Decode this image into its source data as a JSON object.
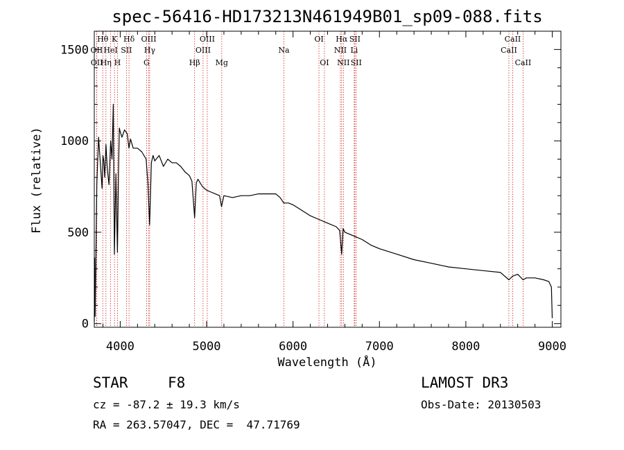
{
  "chart_data": {
    "type": "line",
    "title": "spec-56416-HD173213N461949B01_sp09-088.fits",
    "xlabel": "Wavelength (Å)",
    "ylabel": "Flux (relative)",
    "xlim": [
      3700,
      9100
    ],
    "ylim": [
      -20,
      1600
    ],
    "xticks": [
      4000,
      5000,
      6000,
      7000,
      8000,
      9000
    ],
    "yticks": [
      0,
      500,
      1000,
      1500
    ],
    "series": [
      {
        "name": "spectrum",
        "x": [
          3700,
          3705,
          3710,
          3730,
          3750,
          3770,
          3790,
          3800,
          3810,
          3820,
          3835,
          3850,
          3870,
          3889,
          3905,
          3920,
          3933,
          3950,
          3968,
          3980,
          3990,
          4000,
          4020,
          4050,
          4080,
          4101,
          4120,
          4150,
          4200,
          4250,
          4300,
          4320,
          4340,
          4360,
          4380,
          4400,
          4450,
          4500,
          4550,
          4600,
          4650,
          4700,
          4750,
          4800,
          4830,
          4861,
          4880,
          4900,
          4950,
          5000,
          5050,
          5100,
          5150,
          5172,
          5200,
          5300,
          5400,
          5500,
          5600,
          5700,
          5800,
          5850,
          5893,
          5950,
          6000,
          6100,
          6200,
          6300,
          6400,
          6500,
          6540,
          6563,
          6580,
          6600,
          6700,
          6800,
          6900,
          7000,
          7200,
          7400,
          7600,
          7800,
          8000,
          8200,
          8400,
          8498,
          8542,
          8600,
          8662,
          8700,
          8800,
          8900,
          8960,
          8990,
          9000
        ],
        "y": [
          10,
          360,
          40,
          770,
          1020,
          880,
          740,
          920,
          890,
          800,
          980,
          850,
          760,
          1000,
          900,
          1200,
          380,
          820,
          390,
          830,
          1070,
          1050,
          1020,
          1060,
          1040,
          960,
          1010,
          960,
          960,
          940,
          900,
          770,
          540,
          880,
          920,
          890,
          920,
          860,
          900,
          880,
          880,
          860,
          830,
          810,
          780,
          580,
          770,
          790,
          750,
          730,
          720,
          710,
          700,
          640,
          700,
          690,
          700,
          700,
          710,
          710,
          710,
          690,
          660,
          660,
          650,
          620,
          590,
          570,
          550,
          530,
          510,
          380,
          520,
          500,
          480,
          460,
          430,
          410,
          380,
          350,
          330,
          310,
          300,
          290,
          280,
          240,
          260,
          270,
          240,
          250,
          250,
          240,
          230,
          200,
          30
        ]
      }
    ],
    "lines": [
      {
        "name": "OII",
        "x": 3727,
        "row": 2
      },
      {
        "name": "OII",
        "x": 3729,
        "row": 3
      },
      {
        "name": "Hθ",
        "x": 3798,
        "row": 1
      },
      {
        "name": "Hη",
        "x": 3835,
        "row": 3
      },
      {
        "name": "HeI",
        "x": 3889,
        "row": 2
      },
      {
        "name": "K",
        "x": 3934,
        "row": 1
      },
      {
        "name": "H",
        "x": 3968,
        "row": 3
      },
      {
        "name": "SII",
        "x": 4072,
        "row": 2
      },
      {
        "name": "Hδ",
        "x": 4102,
        "row": 1
      },
      {
        "name": "G",
        "x": 4305,
        "row": 3
      },
      {
        "name": "OIII",
        "x": 4330,
        "row": 1
      },
      {
        "name": "Hγ",
        "x": 4341,
        "row": 2
      },
      {
        "name": "Hβ",
        "x": 4861,
        "row": 3
      },
      {
        "name": "OIII",
        "x": 4959,
        "row": 2
      },
      {
        "name": "OIII",
        "x": 5007,
        "row": 1
      },
      {
        "name": "Mg",
        "x": 5175,
        "row": 3
      },
      {
        "name": "Na",
        "x": 5894,
        "row": 2
      },
      {
        "name": "OI",
        "x": 6300,
        "row": 1
      },
      {
        "name": "OI",
        "x": 6363,
        "row": 3
      },
      {
        "name": "NII",
        "x": 6548,
        "row": 2
      },
      {
        "name": "Hα",
        "x": 6563,
        "row": 1
      },
      {
        "name": "NII",
        "x": 6583,
        "row": 3
      },
      {
        "name": "SII",
        "x": 6716,
        "row": 1
      },
      {
        "name": "Li",
        "x": 6708,
        "row": 2
      },
      {
        "name": "SII",
        "x": 6731,
        "row": 3
      },
      {
        "name": "CaII",
        "x": 8498,
        "row": 2
      },
      {
        "name": "CaII",
        "x": 8542,
        "row": 1
      },
      {
        "name": "CaII",
        "x": 8662,
        "row": 3
      }
    ]
  },
  "info": {
    "object_class": "STAR",
    "subclass": "F8",
    "survey": "LAMOST DR3",
    "cz": "cz = -87.2 ± 19.3 km/s",
    "obs_date": "Obs-Date: 20130503",
    "coords": "RA = 263.57047, DEC =  47.71769"
  }
}
